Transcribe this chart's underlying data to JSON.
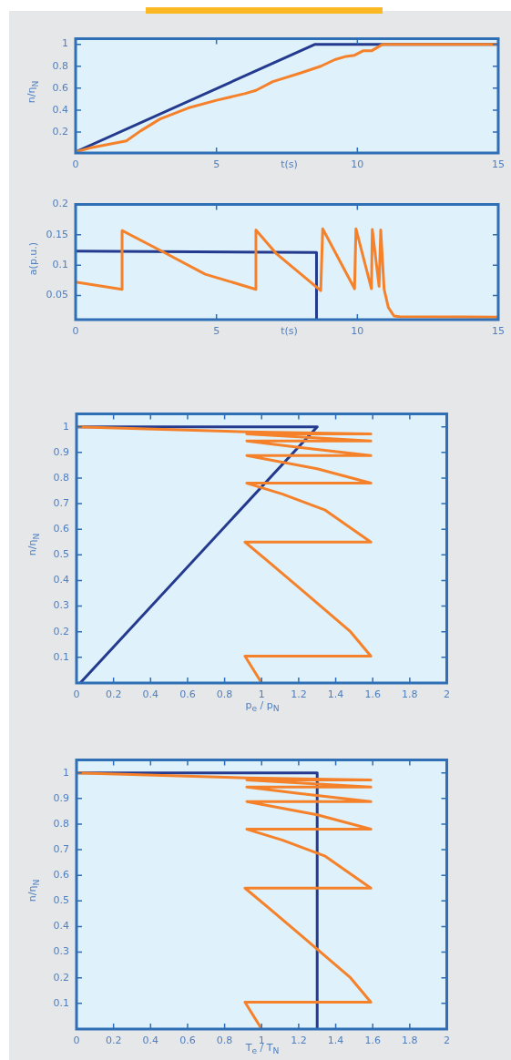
{
  "chart_data": [
    {
      "type": "line",
      "xlabel": "t(s)",
      "ylabel": "n/η$_{N}$",
      "xlim": [
        0,
        15
      ],
      "ylim": [
        0.01,
        1.05
      ],
      "xticks": [
        0,
        5,
        10,
        15
      ],
      "yticks": [
        0.2,
        0.4,
        0.6,
        0.8,
        1
      ],
      "series": [
        {
          "color": "#f5822a",
          "x": [
            0,
            0.5,
            1,
            1.8,
            2.3,
            3,
            4,
            5,
            6,
            6.4,
            7,
            8,
            8.7,
            9.2,
            9.6,
            9.9,
            10.2,
            10.5,
            10.9,
            15
          ],
          "values": [
            0.02,
            0.055,
            0.08,
            0.12,
            0.21,
            0.32,
            0.42,
            0.49,
            0.55,
            0.58,
            0.66,
            0.74,
            0.8,
            0.86,
            0.89,
            0.9,
            0.94,
            0.94,
            1,
            1
          ]
        },
        {
          "color": "#233a8f",
          "x": [
            0,
            8.5,
            15
          ],
          "values": [
            0.02,
            1,
            1
          ]
        }
      ]
    },
    {
      "type": "line",
      "xlabel": "t(s)",
      "ylabel": "a(p.u.)",
      "xlim": [
        0,
        15
      ],
      "ylim": [
        0.01,
        0.2
      ],
      "xticks": [
        0,
        5,
        10,
        15
      ],
      "yticks": [
        0.05,
        0.1,
        0.15,
        0.2
      ],
      "series": [
        {
          "color": "#f5822a",
          "x": [
            0,
            1.65,
            1.65,
            3.1,
            4.6,
            6.4,
            6.4,
            7.1,
            8.7,
            8.77,
            9.9,
            9.95,
            10.5,
            10.53,
            10.77,
            10.83,
            10.95,
            11.1,
            11.3,
            11.5,
            15
          ],
          "values": [
            0.072,
            0.06,
            0.157,
            0.122,
            0.085,
            0.06,
            0.158,
            0.12,
            0.058,
            0.16,
            0.061,
            0.16,
            0.061,
            0.159,
            0.065,
            0.158,
            0.06,
            0.03,
            0.016,
            0.015,
            0.014
          ]
        },
        {
          "color": "#233a8f",
          "x": [
            0,
            8.55,
            8.55
          ],
          "values": [
            0.123,
            0.121,
            0.01
          ]
        }
      ]
    },
    {
      "type": "line",
      "xlabel": "p$_{e}$ / p$_{N}$",
      "ylabel": "n/η$_{N}$",
      "xlim": [
        0,
        2
      ],
      "ylim": [
        0,
        1.05
      ],
      "xticks": [
        0,
        0.2,
        0.4,
        0.6,
        0.8,
        1,
        1.2,
        1.4,
        1.6,
        1.8,
        2
      ],
      "yticks": [
        0.1,
        0.2,
        0.3,
        0.4,
        0.5,
        0.6,
        0.7,
        0.8,
        0.9,
        1
      ],
      "series": [
        {
          "color": "#f5822a",
          "x": [
            1,
            0.91,
            1.59,
            1.48,
            1.23,
            1.03,
            0.91,
            1.59,
            1.34,
            1.11,
            0.92,
            1.59,
            1.3,
            0.92,
            1.59,
            1.2,
            0.92,
            1.59,
            0.92,
            1.59,
            0.92,
            0
          ],
          "values": [
            0,
            0.105,
            0.105,
            0.2,
            0.355,
            0.478,
            0.55,
            0.55,
            0.676,
            0.738,
            0.78,
            0.78,
            0.836,
            0.888,
            0.888,
            0.92,
            0.945,
            0.945,
            0.972,
            0.972,
            0.98,
            1
          ]
        },
        {
          "color": "#233a8f",
          "x": [
            0.02,
            1.3,
            0
          ],
          "values": [
            0,
            1,
            1
          ]
        }
      ]
    },
    {
      "type": "line",
      "xlabel": "T$_{e}$ / T$_{N}$",
      "ylabel": "n/η$_{N}$",
      "xlim": [
        0,
        2
      ],
      "ylim": [
        0,
        1.05
      ],
      "xticks": [
        0,
        0.2,
        0.4,
        0.6,
        0.8,
        1,
        1.2,
        1.4,
        1.6,
        1.8,
        2
      ],
      "yticks": [
        0.1,
        0.2,
        0.3,
        0.4,
        0.5,
        0.6,
        0.7,
        0.8,
        0.9,
        1
      ],
      "series": [
        {
          "color": "#f5822a",
          "x": [
            1,
            0.91,
            1.59,
            1.48,
            1.23,
            1.03,
            0.91,
            1.59,
            1.34,
            1.11,
            0.92,
            1.59,
            1.3,
            0.92,
            1.59,
            1.2,
            0.92,
            1.59,
            0.92,
            1.59,
            0.92,
            0
          ],
          "values": [
            0,
            0.105,
            0.105,
            0.2,
            0.355,
            0.478,
            0.55,
            0.55,
            0.676,
            0.738,
            0.78,
            0.78,
            0.836,
            0.888,
            0.888,
            0.92,
            0.945,
            0.945,
            0.972,
            0.972,
            0.98,
            1
          ]
        },
        {
          "color": "#233a8f",
          "x": [
            0,
            1.3,
            1.3
          ],
          "values": [
            1,
            1,
            0
          ]
        }
      ]
    }
  ]
}
